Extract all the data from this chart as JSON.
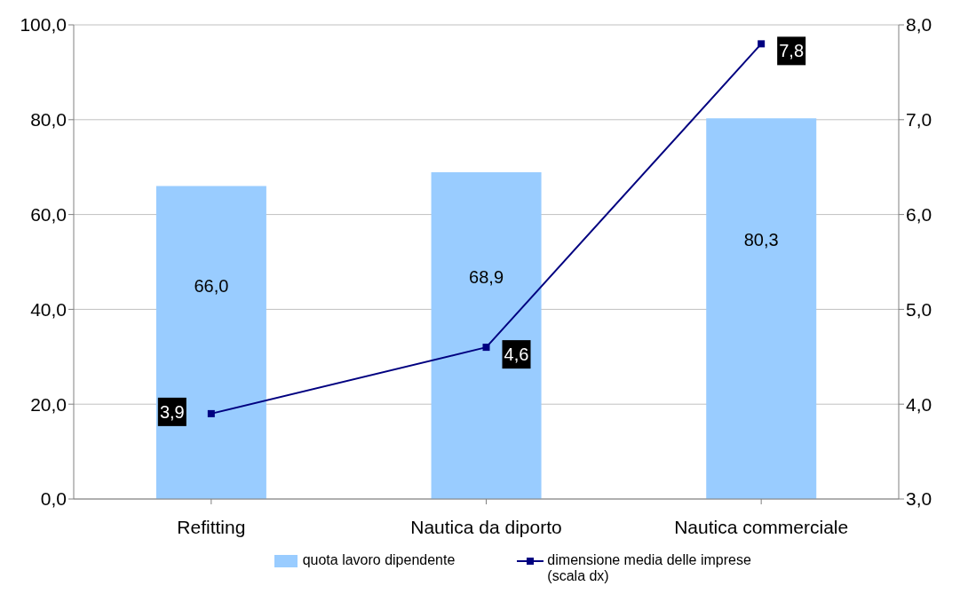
{
  "chart_data": {
    "type": "bar",
    "categories": [
      "Refitting",
      "Nautica da diporto",
      "Nautica commerciale"
    ],
    "series": [
      {
        "name": "quota lavoro dipendente",
        "color": "#99ccff",
        "values": [
          66.0,
          68.9,
          80.3
        ],
        "value_labels": [
          "66,0",
          "68,9",
          "80,3"
        ]
      },
      {
        "name": "dimensione media delle imprese (scala dx)",
        "type": "line",
        "axis": "y2",
        "color": "#000080",
        "values": [
          3.9,
          4.6,
          7.8
        ],
        "value_labels": [
          "3,9",
          "4,6",
          "7,8"
        ]
      }
    ],
    "ylim": [
      0,
      100
    ],
    "yticks": [
      {
        "value": 0,
        "label": "0,0"
      },
      {
        "value": 20,
        "label": "20,0"
      },
      {
        "value": 40,
        "label": "40,0"
      },
      {
        "value": 60,
        "label": "60,0"
      },
      {
        "value": 80,
        "label": "80,0"
      },
      {
        "value": 100,
        "label": "100,0"
      }
    ],
    "y2lim": [
      3,
      8
    ],
    "y2ticks": [
      {
        "value": 3,
        "label": "3,0"
      },
      {
        "value": 4,
        "label": "4,0"
      },
      {
        "value": 5,
        "label": "5,0"
      },
      {
        "value": 6,
        "label": "6,0"
      },
      {
        "value": 7,
        "label": "7,0"
      },
      {
        "value": 8,
        "label": "8,0"
      }
    ],
    "grid": "y",
    "legend": "bottom",
    "marker": "square",
    "line_style": "solid"
  }
}
